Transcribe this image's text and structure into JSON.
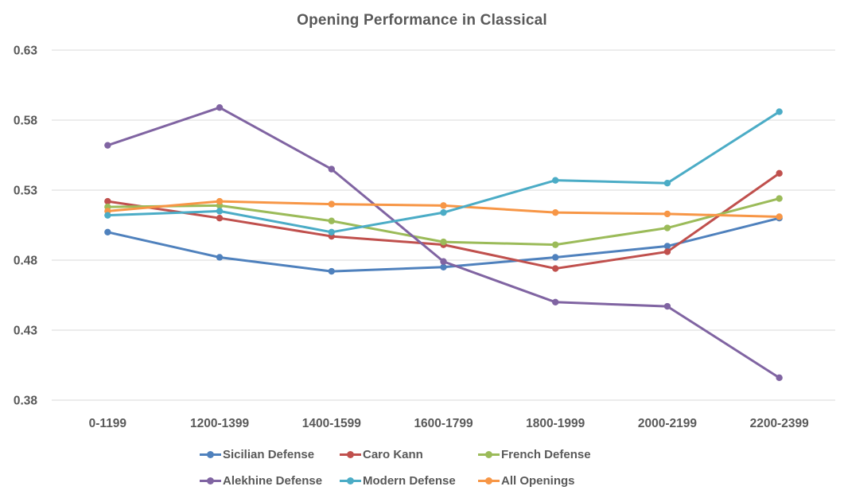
{
  "chart_data": {
    "type": "line",
    "title": "Opening Performance in Classical",
    "xlabel": "",
    "ylabel": "",
    "categories": [
      "0-1199",
      "1200-1399",
      "1400-1599",
      "1600-1799",
      "1800-1999",
      "2000-2199",
      "2200-2399"
    ],
    "series": [
      {
        "name": "Sicilian Defense",
        "color": "#4F81BD",
        "values": [
          0.5,
          0.482,
          0.472,
          0.475,
          0.482,
          0.49,
          0.51
        ]
      },
      {
        "name": "Caro Kann",
        "color": "#C0504D",
        "values": [
          0.522,
          0.51,
          0.497,
          0.491,
          0.474,
          0.486,
          0.542
        ]
      },
      {
        "name": "French Defense",
        "color": "#9BBB59",
        "values": [
          0.518,
          0.519,
          0.508,
          0.493,
          0.491,
          0.503,
          0.524
        ]
      },
      {
        "name": "Alekhine Defense",
        "color": "#8064A2",
        "values": [
          0.562,
          0.589,
          0.545,
          0.479,
          0.45,
          0.447,
          0.396
        ]
      },
      {
        "name": "Modern Defense",
        "color": "#4BACC6",
        "values": [
          0.512,
          0.515,
          0.5,
          0.514,
          0.537,
          0.535,
          0.586
        ]
      },
      {
        "name": "All Openings",
        "color": "#F79646",
        "values": [
          0.515,
          0.522,
          0.52,
          0.519,
          0.514,
          0.513,
          0.511
        ]
      }
    ],
    "ylim": [
      0.38,
      0.63
    ],
    "yticks": [
      0.38,
      0.43,
      0.48,
      0.53,
      0.58,
      0.63
    ],
    "ytick_labels": [
      "0.38",
      "0.43",
      "0.48",
      "0.53",
      "0.58",
      "0.63"
    ],
    "grid": true,
    "legend_position": "bottom",
    "colors": {
      "text": "#595959",
      "gridline": "#D9D9D9",
      "background": "#FFFFFF"
    }
  }
}
